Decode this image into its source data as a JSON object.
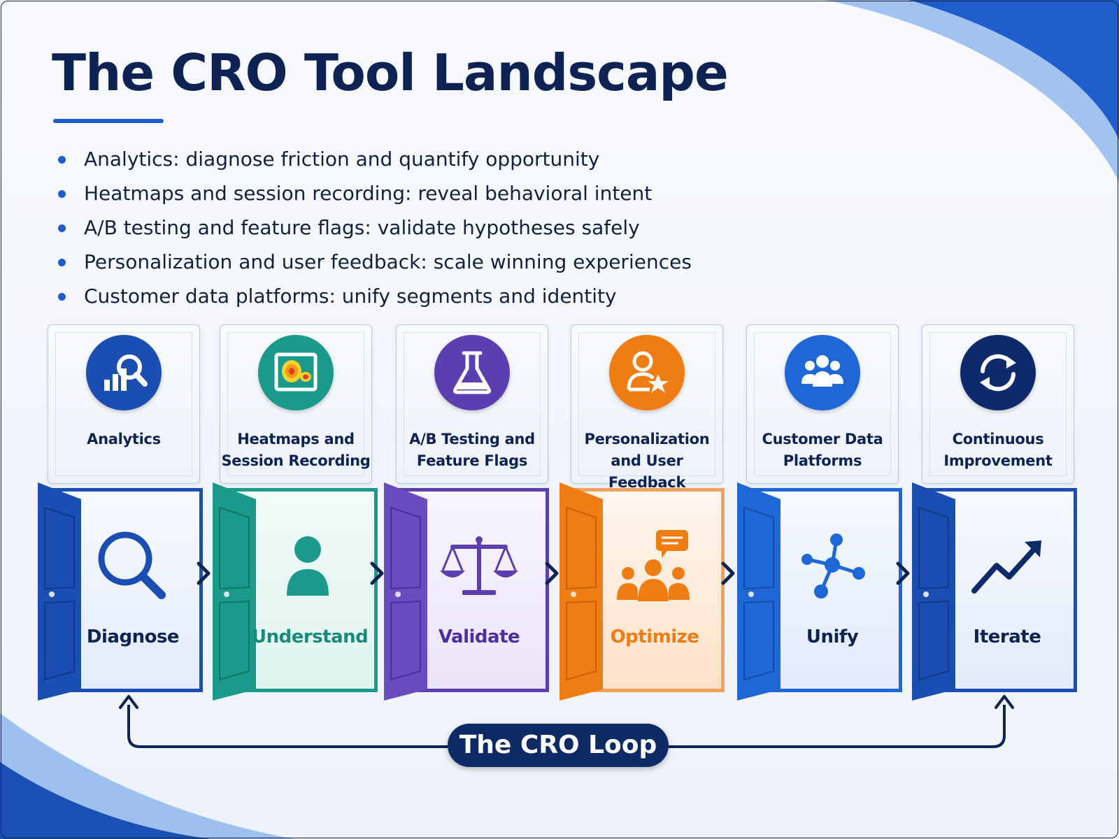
{
  "title": "The CRO Tool Landscape",
  "bullets": [
    "Analytics: diagnose friction and quantify opportunity",
    "Heatmaps and session recording: reveal behavioral intent",
    "A/B testing and feature flags: validate hypotheses safely",
    "Personalization and user feedback: scale winning experiences",
    "Customer data platforms: unify segments and identity"
  ],
  "stages": [
    {
      "tool_line1": "Analytics",
      "tool_line2": "",
      "tool_icon": "analytics-magnifier-icon",
      "door_icon": "magnifier-icon",
      "action": "Diagnose",
      "color": "#1b4eb3"
    },
    {
      "tool_line1": "Heatmaps and",
      "tool_line2": "Session Recording",
      "tool_icon": "heatmap-icon",
      "door_icon": "person-icon",
      "action": "Understand",
      "color": "#1a9a8a"
    },
    {
      "tool_line1": "A/B Testing and",
      "tool_line2": "Feature Flags",
      "tool_icon": "flask-icon",
      "door_icon": "scales-icon",
      "action": "Validate",
      "color": "#5b3fb0"
    },
    {
      "tool_line1": "Personalization",
      "tool_line2": "and User Feedback",
      "tool_icon": "person-star-icon",
      "door_icon": "group-chat-icon",
      "action": "Optimize",
      "color": "#f07d14"
    },
    {
      "tool_line1": "Customer Data",
      "tool_line2": "Platforms",
      "tool_icon": "people-group-icon",
      "door_icon": "network-nodes-icon",
      "action": "Unify",
      "color": "#1f66d6"
    },
    {
      "tool_line1": "Continuous",
      "tool_line2": "Improvement",
      "tool_icon": "refresh-cycle-icon",
      "door_icon": "trend-up-icon",
      "action": "Iterate",
      "color": "#0e2a6b"
    }
  ],
  "loop_label": "The CRO Loop",
  "colors": {
    "navy": "#0e2354",
    "accent": "#1f5ccc",
    "teal": "#1a9a8a",
    "purple": "#5b3fb0",
    "orange": "#f07d14",
    "blue": "#1f66d6"
  }
}
